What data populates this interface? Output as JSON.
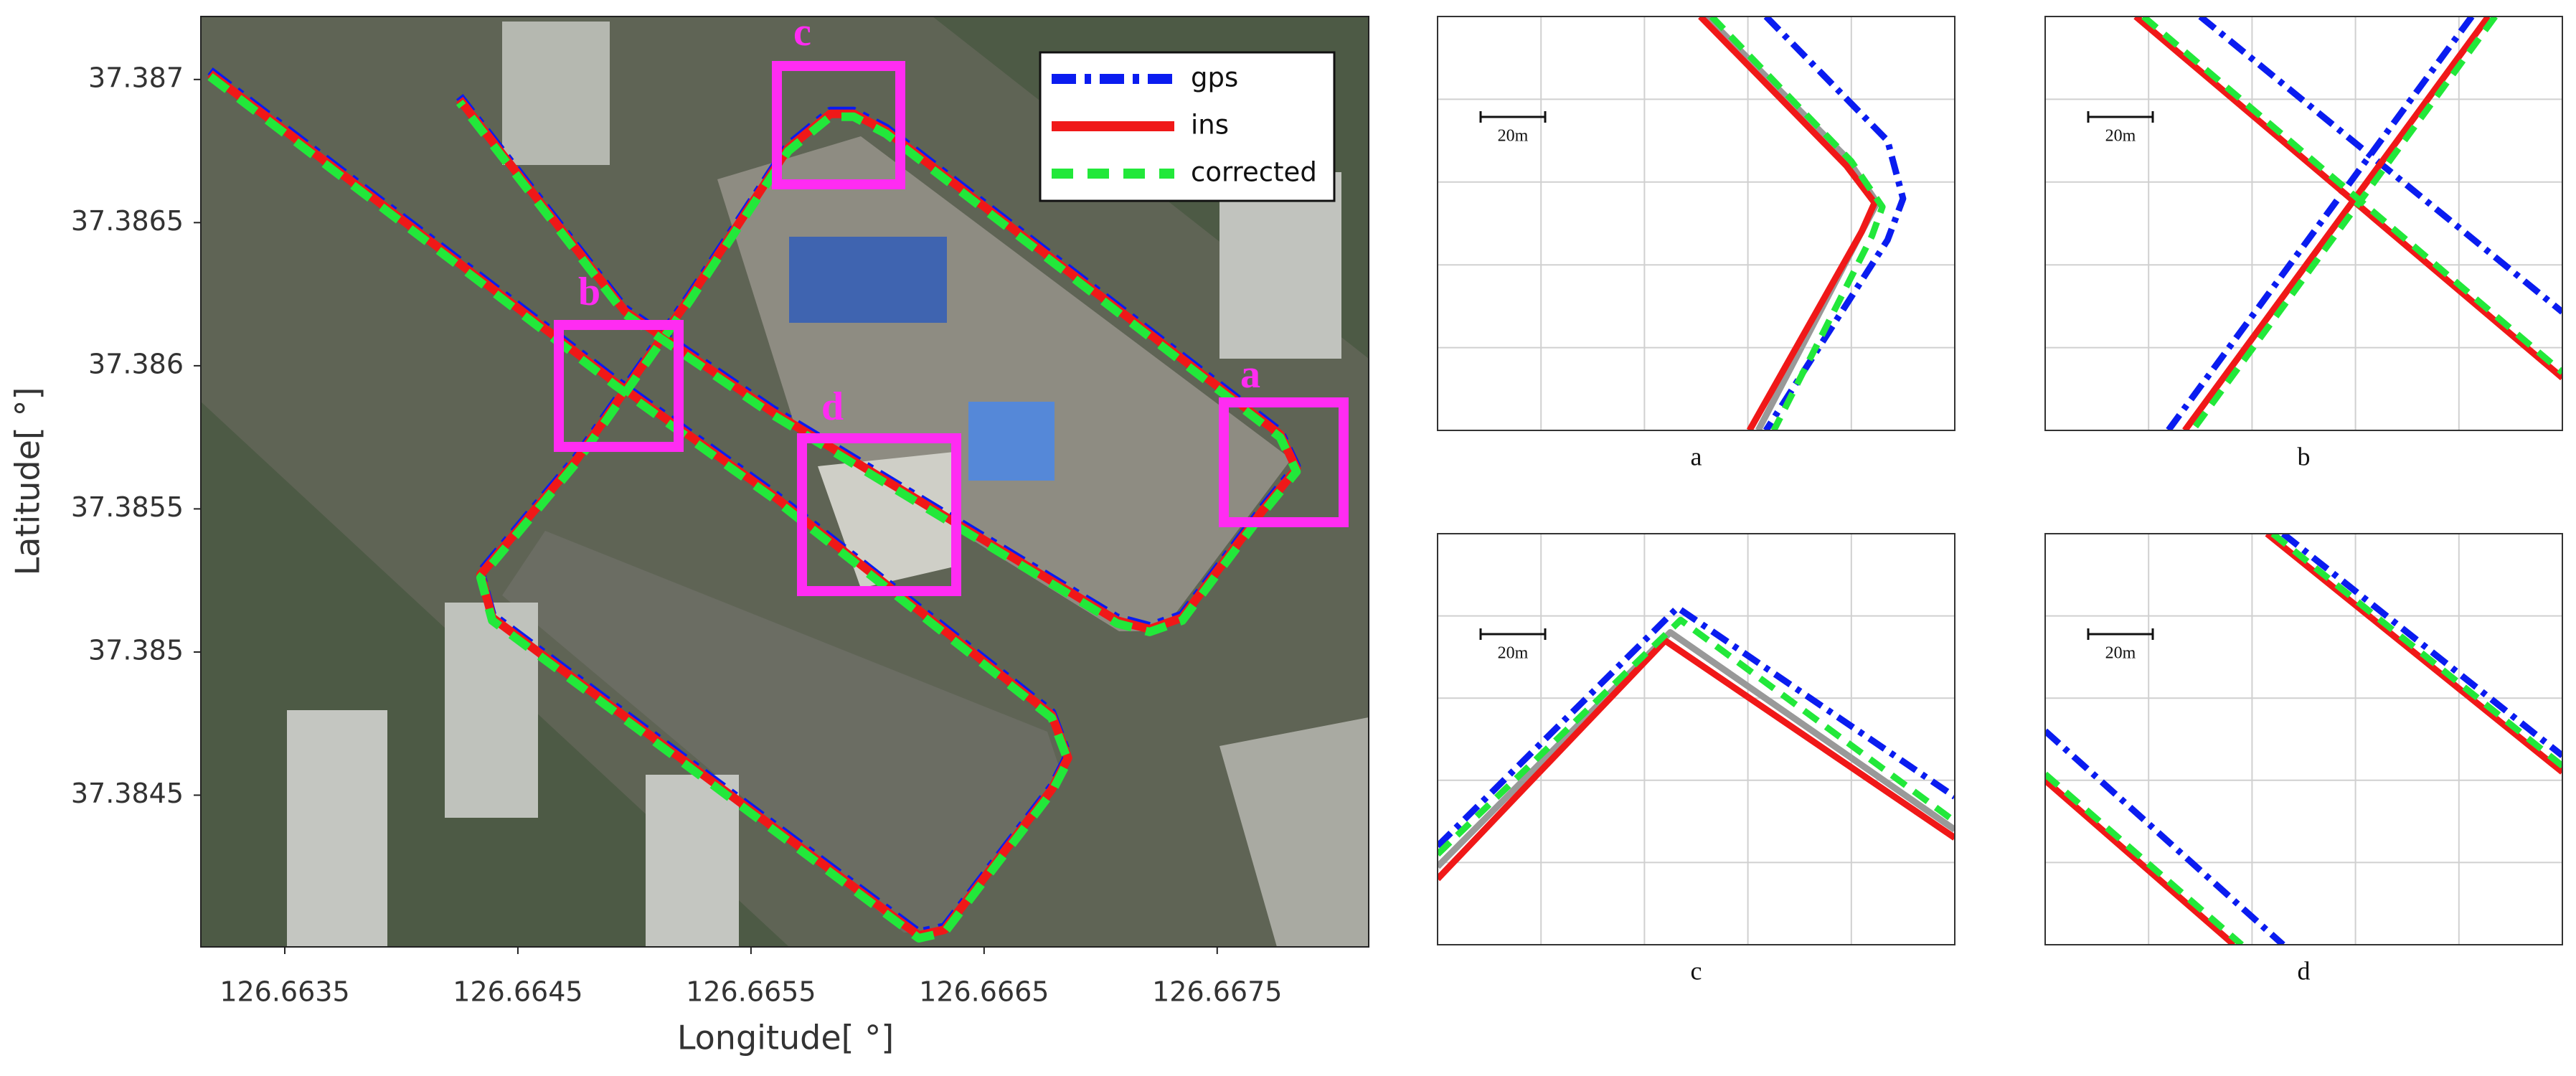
{
  "chart_data": [
    {
      "type": "line",
      "xlabel": "Longitude[ °]",
      "ylabel": "Latitude[ °]",
      "xlim": [
        126.66314,
        126.66815
      ],
      "ylim": [
        37.38397,
        37.38722
      ],
      "xticks": [
        126.6635,
        126.6645,
        126.6655,
        126.6665,
        126.6675
      ],
      "yticks": [
        37.3845,
        37.385,
        37.3855,
        37.386,
        37.3865,
        37.387
      ],
      "legend": "upper right",
      "annotations": [
        "a",
        "b",
        "c",
        "d"
      ],
      "x": [
        126.66318,
        126.66439,
        126.66492,
        126.66559,
        126.66679,
        126.66686,
        126.66679,
        126.66633,
        126.66622,
        126.66439,
        126.66434,
        126.66475,
        126.66524,
        126.66566,
        126.66584,
        126.66594,
        126.66608,
        126.66777,
        126.66784,
        126.6677,
        126.66735,
        126.66721,
        126.66707,
        126.66559,
        126.66496,
        126.66425
      ],
      "series": [
        {
          "name": "gps",
          "color": "#0a1cf0",
          "linestyle": "dashdot",
          "values": [
            37.38703,
            37.38628,
            37.38595,
            37.38556,
            37.38479,
            37.38464,
            37.38453,
            37.38404,
            37.38402,
            37.38513,
            37.38528,
            37.38568,
            37.38625,
            37.38677,
            37.38689,
            37.38689,
            37.38683,
            37.38577,
            37.38565,
            37.38551,
            37.38513,
            37.38509,
            37.38512,
            37.38585,
            37.3862,
            37.38694
          ]
        },
        {
          "name": "ins",
          "color": "#f01818",
          "linestyle": "solid",
          "values": [
            37.38702,
            37.38627,
            37.38594,
            37.38555,
            37.38478,
            37.38463,
            37.38452,
            37.38403,
            37.38401,
            37.38512,
            37.38527,
            37.38567,
            37.38624,
            37.38676,
            37.38688,
            37.38688,
            37.38682,
            37.38576,
            37.38564,
            37.3855,
            37.38512,
            37.38508,
            37.38511,
            37.38584,
            37.38619,
            37.38693
          ]
        },
        {
          "name": "corrected",
          "color": "#22e83a",
          "linestyle": "dashed",
          "values": [
            37.38701,
            37.38626,
            37.38593,
            37.38554,
            37.38477,
            37.38462,
            37.38451,
            37.38402,
            37.384,
            37.38511,
            37.38526,
            37.38566,
            37.38623,
            37.38675,
            37.38687,
            37.38687,
            37.38681,
            37.38575,
            37.38563,
            37.38549,
            37.38511,
            37.38507,
            37.3851,
            37.38583,
            37.38618,
            37.38692
          ]
        }
      ]
    },
    {
      "type": "line",
      "caption": "a",
      "scale_label": "20m",
      "grid": true,
      "xlim": [
        0,
        10
      ],
      "ylim": [
        0,
        10
      ],
      "xticks": [
        0,
        2,
        4,
        6,
        8,
        10
      ],
      "yticks": [
        0,
        2,
        4,
        6,
        8,
        10
      ],
      "series": [
        {
          "color": "#999999",
          "linestyle": "solid",
          "x": [
            5.2,
            7.9,
            8.5,
            8.2,
            6.2
          ],
          "values": [
            10,
            6.6,
            5.5,
            4.8,
            0
          ]
        },
        {
          "color": "#0a1cf0",
          "linestyle": "dashdot",
          "x": [
            6.35,
            8.7,
            9.0,
            8.7,
            6.35
          ],
          "values": [
            10,
            7.0,
            5.6,
            4.6,
            0
          ]
        },
        {
          "color": "#f01818",
          "linestyle": "solid",
          "x": [
            5.08,
            7.9,
            8.45,
            8.2,
            6.03
          ],
          "values": [
            10,
            6.4,
            5.5,
            4.8,
            0
          ]
        },
        {
          "color": "#22e83a",
          "linestyle": "dashed",
          "x": [
            5.3,
            8.0,
            8.6,
            8.4,
            6.5
          ],
          "values": [
            10,
            6.5,
            5.4,
            4.7,
            0
          ]
        }
      ]
    },
    {
      "type": "line",
      "caption": "b",
      "scale_label": "20m",
      "grid": true,
      "xlim": [
        0,
        10
      ],
      "ylim": [
        0,
        10
      ],
      "xticks": [
        0,
        2,
        4,
        6,
        8,
        10
      ],
      "yticks": [
        0,
        2,
        4,
        6,
        8,
        10
      ],
      "series": [
        {
          "color": "#0a1cf0",
          "linestyle": "dashdot",
          "x": [
            3.0,
            10,
            null,
            8.25,
            2.38
          ],
          "values": [
            10,
            2.86,
            null,
            10,
            0
          ]
        },
        {
          "color": "#f01818",
          "linestyle": "solid",
          "x": [
            1.75,
            10,
            null,
            8.57,
            2.7
          ],
          "values": [
            10,
            1.27,
            null,
            10,
            0
          ]
        },
        {
          "color": "#22e83a",
          "linestyle": "dashed",
          "x": [
            1.9,
            10,
            null,
            8.7,
            2.85
          ],
          "values": [
            10,
            1.4,
            null,
            10,
            0
          ]
        }
      ]
    },
    {
      "type": "line",
      "caption": "c",
      "scale_label": "20m",
      "grid": true,
      "xlim": [
        0,
        10
      ],
      "ylim": [
        0,
        10
      ],
      "xticks": [
        0,
        2,
        4,
        6,
        8,
        10
      ],
      "yticks": [
        0,
        2,
        4,
        6,
        8,
        10
      ],
      "series": [
        {
          "color": "#999999",
          "linestyle": "solid",
          "x": [
            0,
            4.5,
            10
          ],
          "values": [
            1.9,
            7.6,
            2.8
          ]
        },
        {
          "color": "#0a1cf0",
          "linestyle": "dashdot",
          "x": [
            0,
            4.64,
            10
          ],
          "values": [
            2.4,
            8.2,
            3.6
          ]
        },
        {
          "color": "#f01818",
          "linestyle": "solid",
          "x": [
            0,
            4.4,
            10
          ],
          "values": [
            1.6,
            7.4,
            2.6
          ]
        },
        {
          "color": "#22e83a",
          "linestyle": "dashed",
          "x": [
            0,
            4.7,
            10
          ],
          "values": [
            2.2,
            7.9,
            3.0
          ]
        }
      ]
    },
    {
      "type": "line",
      "caption": "d",
      "scale_label": "20m",
      "grid": true,
      "xlim": [
        0,
        10
      ],
      "ylim": [
        0,
        10
      ],
      "xticks": [
        0,
        2,
        4,
        6,
        8,
        10
      ],
      "yticks": [
        0,
        2,
        4,
        6,
        8,
        10
      ],
      "series": [
        {
          "color": "#0a1cf0",
          "linestyle": "dashdot",
          "x": [
            4.6,
            10,
            null,
            0,
            4.6
          ],
          "values": [
            10,
            4.6,
            null,
            5.2,
            0
          ]
        },
        {
          "color": "#f01818",
          "linestyle": "solid",
          "x": [
            4.29,
            10,
            null,
            0,
            3.65
          ],
          "values": [
            10,
            4.2,
            null,
            4.0,
            0
          ]
        },
        {
          "color": "#22e83a",
          "linestyle": "dashed",
          "x": [
            4.4,
            10,
            null,
            0,
            3.8
          ],
          "values": [
            10,
            4.35,
            null,
            4.15,
            0
          ]
        }
      ]
    }
  ]
}
